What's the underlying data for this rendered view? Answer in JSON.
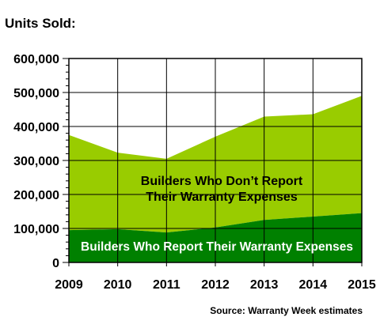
{
  "chart_data": {
    "type": "area",
    "stacked": true,
    "title": "Units Sold:",
    "source": "Source: Warranty Week estimates",
    "x": [
      "2009",
      "2010",
      "2011",
      "2012",
      "2013",
      "2014",
      "2015"
    ],
    "ylim": [
      0,
      600000
    ],
    "yticks": [
      "0",
      "100,000",
      "200,000",
      "300,000",
      "400,000",
      "500,000",
      "600,000"
    ],
    "grid": true,
    "series": [
      {
        "name": "Builders Who Report Their Warranty Expenses",
        "values": [
          95000,
          98000,
          88000,
          103000,
          125000,
          135000,
          145000
        ],
        "color": "#008000"
      },
      {
        "name": "Builders Who Don’t Report Their Warranty Expenses",
        "values": [
          280000,
          225000,
          217000,
          267000,
          304000,
          301000,
          345000
        ],
        "color": "#99CC00"
      }
    ],
    "annotations": {
      "upper_line1": "Builders Who Don’t Report",
      "upper_line2": "Their Warranty Expenses",
      "lower": "Builders Who Report Their Warranty Expenses"
    }
  }
}
